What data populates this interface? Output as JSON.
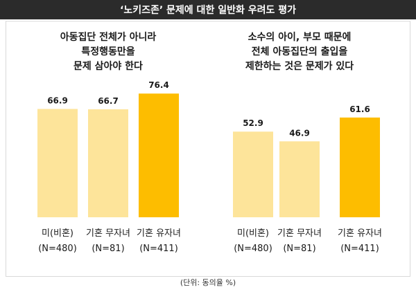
{
  "header": {
    "title": "‘노키즈존’ 문제에 대한 일반화 우려도 평가"
  },
  "footer": {
    "unit_note": "(단위: 동의율 %)"
  },
  "colors": {
    "light": "#fde49a",
    "highlight": "#fdbd00",
    "label": "#1a1a1a"
  },
  "chart_data": [
    {
      "type": "bar",
      "title_lines": [
        "아동집단 전체가 아니라",
        "특정행동만을",
        "문제 삼아야 한다"
      ],
      "categories": [
        {
          "line1": "미(비혼)",
          "line2": "(N=480)"
        },
        {
          "line1": "기혼 무자녀",
          "line2": "(N=81)"
        },
        {
          "line1": "기혼 유자녀",
          "line2": "(N=411)"
        }
      ],
      "values": [
        66.9,
        66.7,
        76.4
      ],
      "highlight_index": 2,
      "ylim": [
        0,
        100
      ]
    },
    {
      "type": "bar",
      "title_lines": [
        "소수의 아이, 부모 때문에",
        "전체 아동집단의 출입을",
        "제한하는 것은 문제가 있다"
      ],
      "categories": [
        {
          "line1": "미(비혼)",
          "line2": "(N=480)"
        },
        {
          "line1": "기혼 무자녀",
          "line2": "(N=81)"
        },
        {
          "line1": "기혼 유자녀",
          "line2": "(N=411)"
        }
      ],
      "values": [
        52.9,
        46.9,
        61.6
      ],
      "highlight_index": 2,
      "ylim": [
        0,
        100
      ]
    }
  ]
}
